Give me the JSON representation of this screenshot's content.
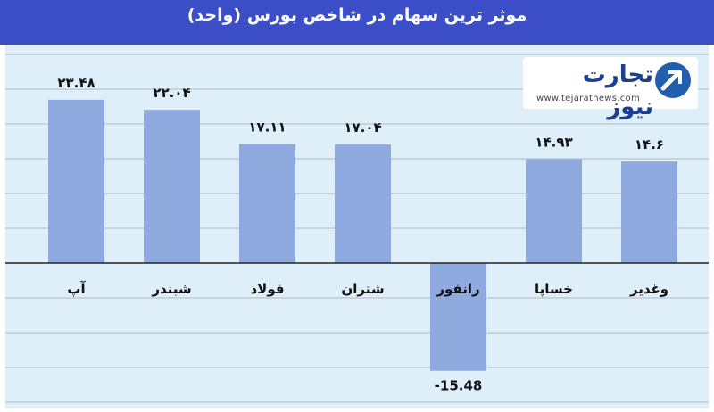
{
  "header": {
    "title": "موثر ترین سهام در شاخص بورس (واحد)"
  },
  "logo": {
    "word": "تجارت نیوز",
    "url": "www.tejaratnews.com"
  },
  "colors": {
    "header_bg": "#3b4ec8",
    "plot_bg": "#deeff9",
    "bar": "#8eaadf",
    "grid": "#8a8f99",
    "text": "#111111"
  },
  "chart_data": {
    "type": "bar",
    "categories": [
      "وغدیر",
      "خساپا",
      "رانفور",
      "شتران",
      "فولاد",
      "شبندر",
      "آپ"
    ],
    "values": [
      14.6,
      14.93,
      -15.48,
      17.04,
      17.11,
      22.04,
      23.48
    ],
    "value_labels": [
      "۱۴.۶",
      "۱۴.۹۳",
      "-15.48",
      "۱۷.۰۴",
      "۱۷.۱۱",
      "۲۲.۰۴",
      "۲۳.۴۸"
    ],
    "title": "موثر ترین سهام در شاخص بورس (واحد)",
    "ylim": [
      -20,
      30
    ],
    "grid": true,
    "category_order": "right-to-left"
  }
}
